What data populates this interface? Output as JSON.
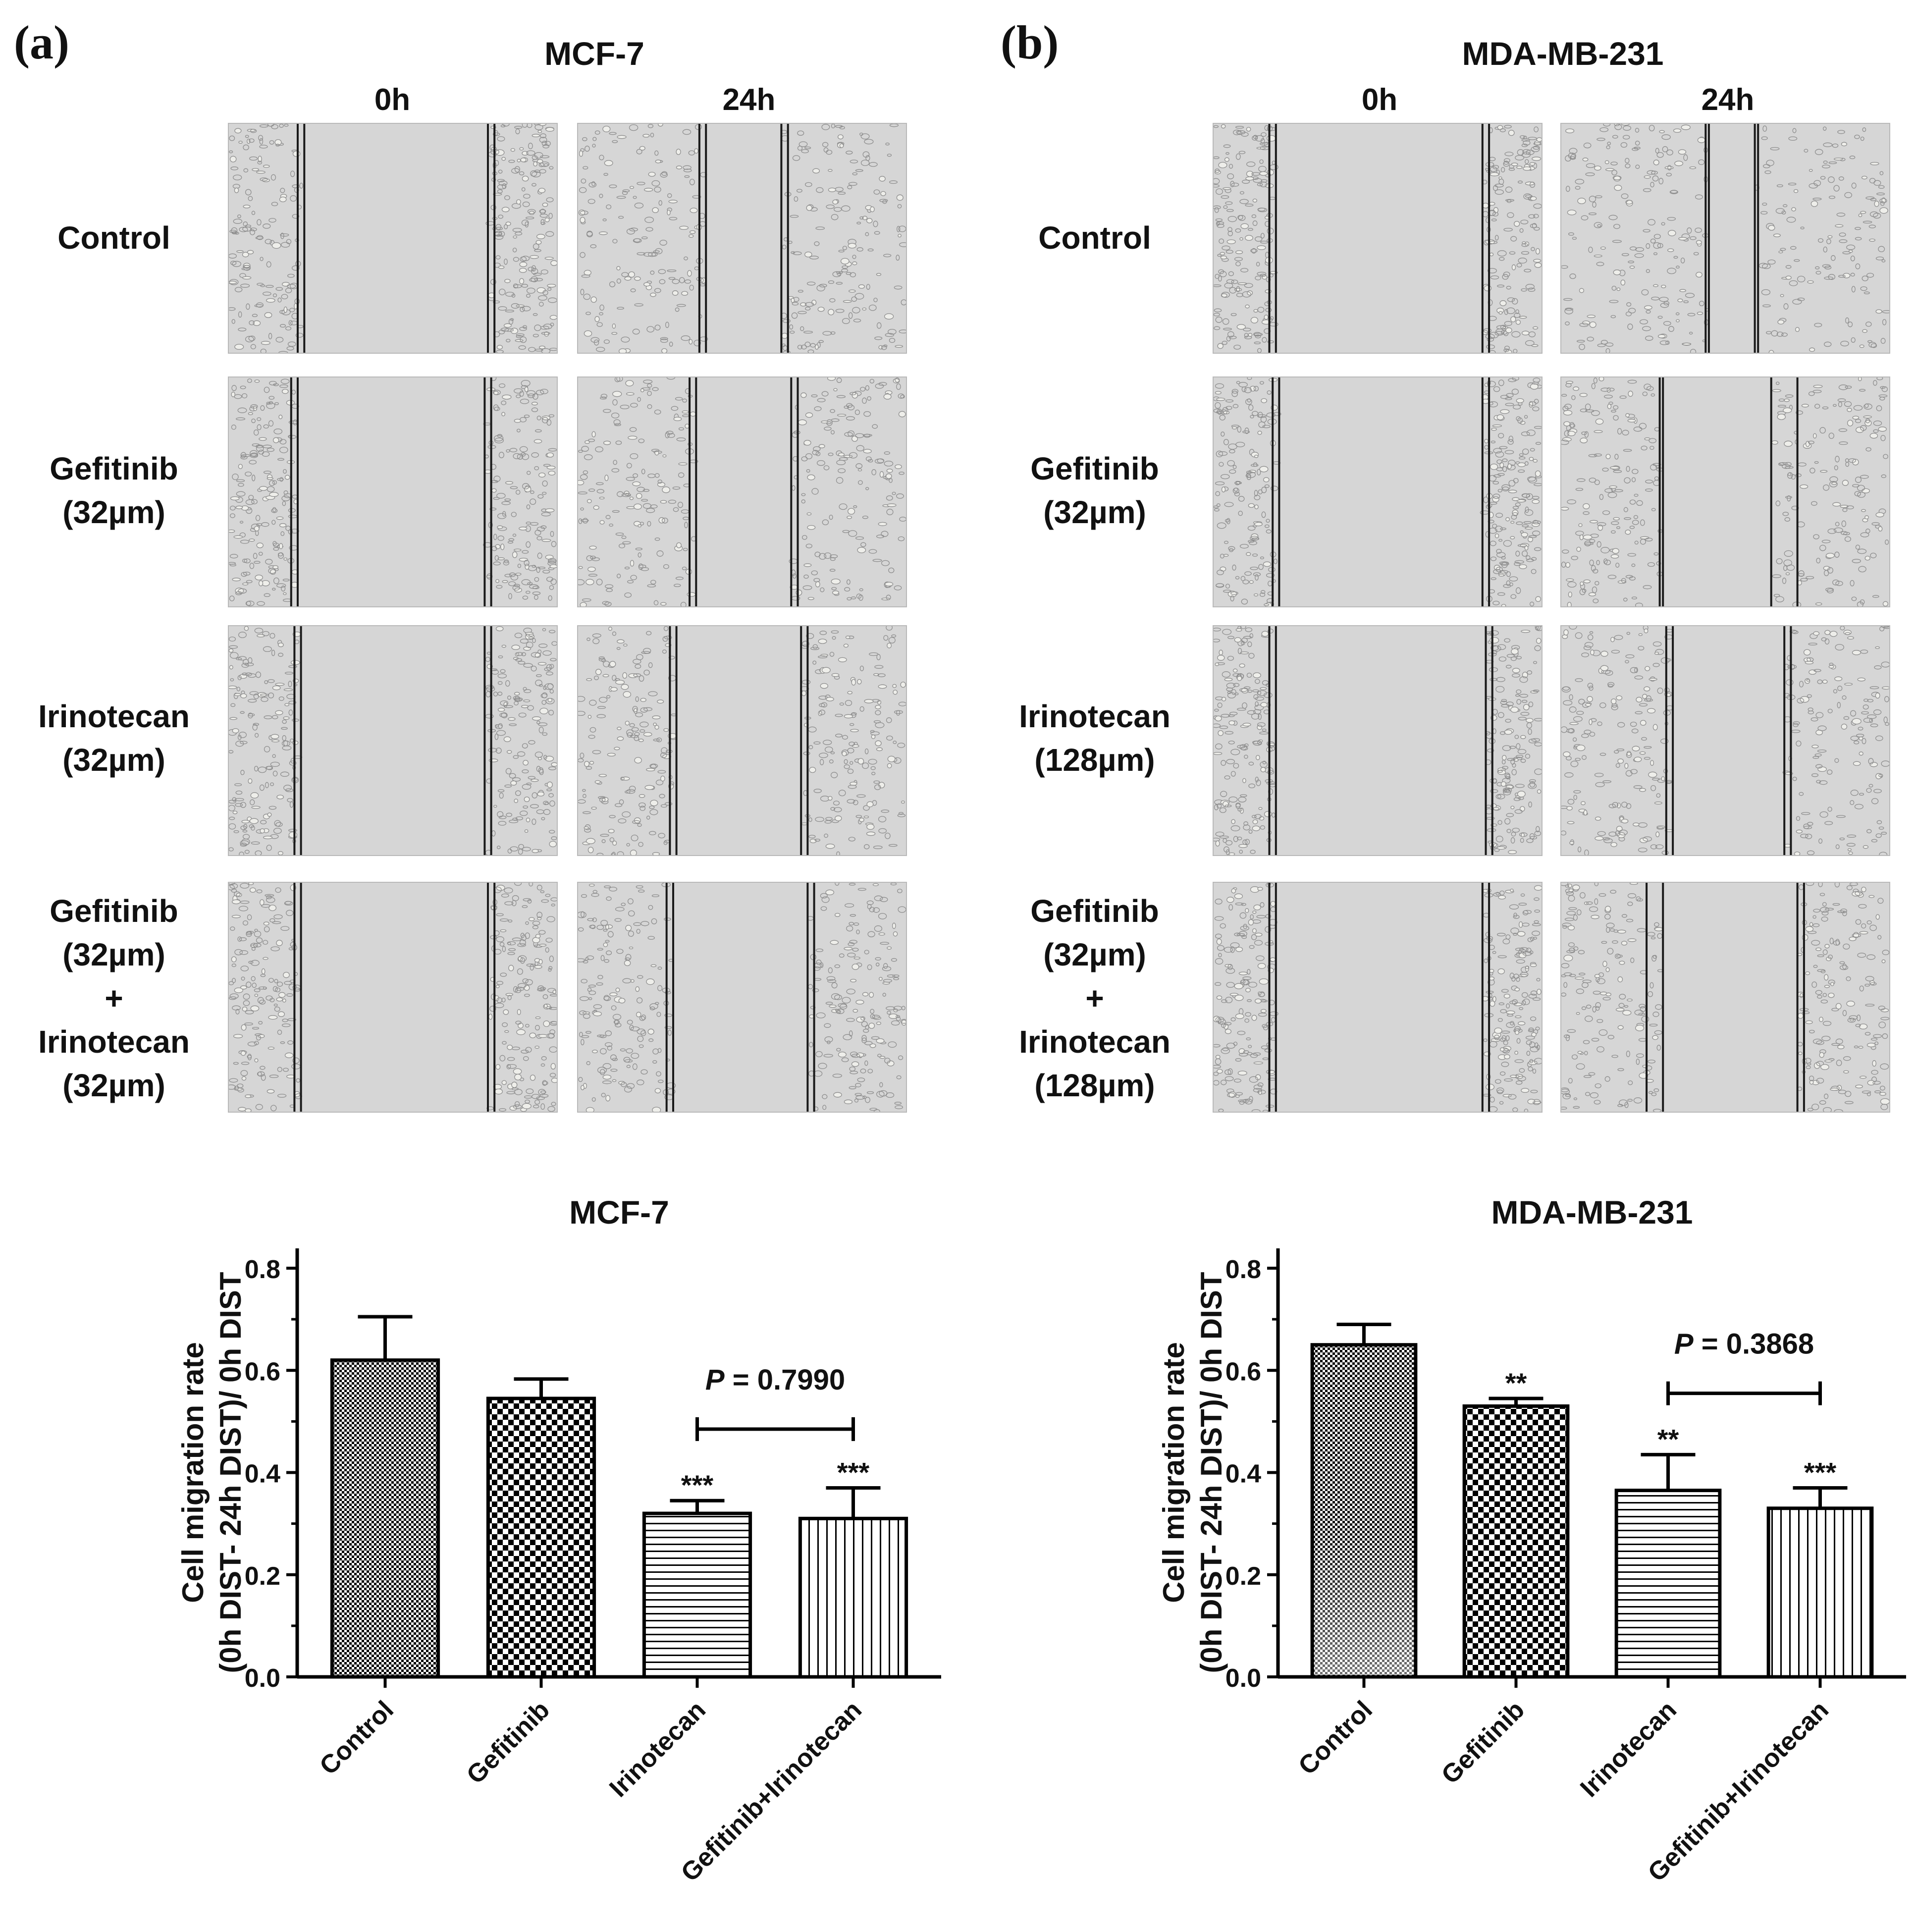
{
  "colors": {
    "background": "#ffffff",
    "micrograph_bg": "#d6d6d6",
    "scratch_line": "#1a1a1a",
    "bar_stroke": "#000000",
    "text": "#111111"
  },
  "panels": [
    {
      "id": "a",
      "label": "(a)",
      "cell_line": "MCF-7",
      "timepoints": [
        "0h",
        "24h"
      ],
      "rows": [
        {
          "lines": [
            "Control"
          ]
        },
        {
          "lines": [
            "Gefitinib",
            "(32µm)"
          ]
        },
        {
          "lines": [
            "Irinotecan",
            "(32µm)"
          ]
        },
        {
          "lines": [
            "Gefitinib",
            "(32µm)",
            "+",
            "Irinotecan",
            "(32µm)"
          ]
        }
      ]
    },
    {
      "id": "b",
      "label": "(b)",
      "cell_line": "MDA-MB-231",
      "timepoints": [
        "0h",
        "24h"
      ],
      "rows": [
        {
          "lines": [
            "Control"
          ]
        },
        {
          "lines": [
            "Gefitinib",
            "(32µm)"
          ]
        },
        {
          "lines": [
            "Irinotecan",
            "(128µm)"
          ]
        },
        {
          "lines": [
            "Gefitinib",
            "(32µm)",
            "+",
            "Irinotecan",
            "(128µm)"
          ]
        }
      ]
    }
  ],
  "chart_data": [
    {
      "type": "bar",
      "title": "MCF-7",
      "ylabel_lines": [
        "Cell migration rate",
        "(0h DIST- 24h DIST)/ 0h DIST"
      ],
      "xlabel": "",
      "categories": [
        "Control",
        "Gefitinib",
        "Irinotecan",
        "Gefitinib+Irinotecan"
      ],
      "values": [
        0.62,
        0.545,
        0.32,
        0.31
      ],
      "errors": [
        0.085,
        0.038,
        0.025,
        0.06
      ],
      "patterns": [
        "fine-check",
        "check",
        "hlines",
        "vlines"
      ],
      "significance": [
        "",
        "",
        "***",
        "***"
      ],
      "comparison": {
        "from": 2,
        "to": 3,
        "label_prefix": "P",
        "label_value": " = 0.7990",
        "y": 0.485
      },
      "ylim": [
        0,
        0.8
      ],
      "yticks": [
        "0.0",
        "0.2",
        "0.4",
        "0.6",
        "0.8"
      ],
      "ytick_values": [
        0,
        0.2,
        0.4,
        0.6,
        0.8
      ]
    },
    {
      "type": "bar",
      "title": "MDA-MB-231",
      "ylabel_lines": [
        "Cell migration rate",
        "(0h DIST- 24h DIST)/ 0h DIST"
      ],
      "xlabel": "",
      "categories": [
        "Control",
        "Gefitinib",
        "Irinotecan",
        "Gefitinib+Irinotecan"
      ],
      "values": [
        0.65,
        0.53,
        0.365,
        0.33
      ],
      "errors": [
        0.04,
        0.015,
        0.07,
        0.04
      ],
      "patterns": [
        "fine-check-gradient",
        "check",
        "hlines",
        "vlines"
      ],
      "significance": [
        "",
        "**",
        "**",
        "***"
      ],
      "comparison": {
        "from": 2,
        "to": 3,
        "label_prefix": "P",
        "label_value": " = 0.3868",
        "y": 0.555
      },
      "ylim": [
        0,
        0.8
      ],
      "yticks": [
        "0.0",
        "0.2",
        "0.4",
        "0.6",
        "0.8"
      ],
      "ytick_values": [
        0,
        0.2,
        0.4,
        0.6,
        0.8
      ]
    }
  ]
}
